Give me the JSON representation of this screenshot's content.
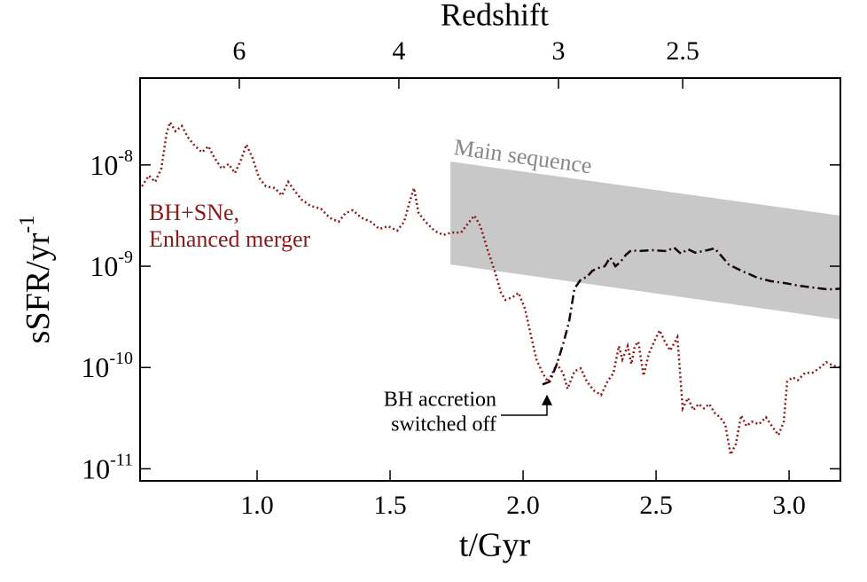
{
  "chart_data": {
    "type": "line",
    "xlabel": "t/Gyr",
    "ylabel": {
      "text": "sSFR/yr",
      "exponent": "-1"
    },
    "x2label": "Redshift",
    "xlim": [
      0.56,
      3.193
    ],
    "ylim": [
      7.6e-12,
      7.2e-08
    ],
    "log_y": true,
    "xticks": [
      {
        "value": 1,
        "label": "1.0"
      },
      1.5,
      {
        "value": 2,
        "label": "2.0"
      },
      2.5,
      {
        "value": 3,
        "label": "3.0"
      }
    ],
    "x2ticks": [
      {
        "value": 0.933,
        "label": "6"
      },
      {
        "value": 1.533,
        "label": "4"
      },
      {
        "value": 2.133,
        "label": "3"
      },
      {
        "value": 2.6,
        "label": "2.5"
      }
    ],
    "yticks": [
      {
        "value": 1e-08,
        "base": "10",
        "exponent": "-8"
      },
      {
        "value": 1e-09,
        "base": "10",
        "exponent": "-9"
      },
      {
        "value": 1e-10,
        "base": "10",
        "exponent": "-10"
      },
      {
        "value": 1e-11,
        "base": "10",
        "exponent": "-11"
      }
    ],
    "band": {
      "x": [
        1.727,
        3.193
      ],
      "lower": [
        1.04e-09,
        2.98e-10
      ],
      "upper": [
        1.08e-08,
        3.16e-09
      ],
      "color": "#c8c8c8"
    },
    "series": [
      {
        "color": "#8b1a1a",
        "style": "dotted",
        "x": [
          0.567,
          0.593,
          0.617,
          0.64,
          0.66,
          0.673,
          0.693,
          0.717,
          0.74,
          0.767,
          0.793,
          0.817,
          0.84,
          0.867,
          0.893,
          0.917,
          0.94,
          0.96,
          0.983,
          1.007,
          1.033,
          1.067,
          1.093,
          1.117,
          1.14,
          1.167,
          1.2,
          1.24,
          1.273,
          1.307,
          1.333,
          1.36,
          1.393,
          1.427,
          1.46,
          1.493,
          1.527,
          1.553,
          1.573,
          1.59,
          1.607,
          1.633,
          1.667,
          1.7,
          1.733,
          1.767,
          1.793,
          1.817,
          1.84,
          1.867,
          1.893,
          1.917,
          1.933,
          1.96,
          1.983,
          2.007,
          2.027,
          2.05,
          2.073,
          2.093,
          2.107,
          2.127,
          2.15,
          2.167,
          2.193,
          2.217,
          2.24,
          2.267,
          2.293,
          2.317,
          2.34,
          2.36,
          2.373,
          2.393,
          2.407,
          2.42,
          2.433,
          2.453,
          2.473,
          2.493,
          2.513,
          2.533,
          2.553,
          2.58,
          2.6,
          2.62,
          2.64,
          2.66,
          2.68,
          2.7,
          2.72,
          2.74,
          2.76,
          2.78,
          2.8,
          2.82,
          2.84,
          2.86,
          2.887,
          2.913,
          2.94,
          2.96,
          2.98,
          2.993,
          3.013,
          3.033,
          3.06,
          3.087,
          3.113,
          3.14,
          3.167,
          3.193
        ],
        "values": [
          6.15e-09,
          7.85e-09,
          6.8e-09,
          9.2e-09,
          2.07e-08,
          2.64e-08,
          2.15e-08,
          2.43e-08,
          1.87e-08,
          1.53e-08,
          1.33e-08,
          1.53e-08,
          1.17e-08,
          9.2e-09,
          1.02e-08,
          8.3e-09,
          1.13e-08,
          1.59e-08,
          1.17e-08,
          7.5e-09,
          6.15e-09,
          5.9e-09,
          5e-09,
          6.8e-09,
          5.6e-09,
          4.55e-09,
          3.95e-09,
          3.7e-09,
          3e-09,
          2.75e-09,
          3.36e-09,
          3.57e-09,
          3e-09,
          2.75e-09,
          2.33e-09,
          2.48e-09,
          2.24e-09,
          2.75e-09,
          4.28e-09,
          5.9e-09,
          3.36e-09,
          2.75e-09,
          2.24e-09,
          2.03e-09,
          2.15e-09,
          2.15e-09,
          2.64e-09,
          3.16e-09,
          2.48e-09,
          1.44e-09,
          9e-10,
          5.46e-10,
          4.65e-10,
          4.93e-10,
          5.46e-10,
          3.8e-10,
          2.2e-10,
          1.2e-10,
          8.85e-11,
          7.24e-11,
          8.5e-11,
          1.08e-10,
          8.85e-11,
          6.15e-11,
          9.2e-11,
          9.8e-11,
          7.24e-11,
          5.9e-11,
          5.35e-11,
          7.24e-11,
          8.85e-11,
          1.63e-10,
          1.2e-10,
          1.63e-10,
          1.08e-10,
          1.63e-10,
          1.8e-10,
          8.3e-11,
          1.38e-10,
          1.8e-10,
          2.33e-10,
          1.8e-10,
          1.47e-10,
          1.99e-10,
          3.95e-11,
          5e-11,
          3.8e-11,
          4.37e-11,
          3.95e-11,
          4.37e-11,
          3.57e-11,
          3.23e-11,
          2.75e-11,
          1.38e-11,
          1.76e-11,
          3.36e-11,
          2.64e-11,
          2.92e-11,
          2.75e-11,
          3.23e-11,
          2.54e-11,
          2.15e-11,
          2.92e-11,
          7.24e-11,
          8e-11,
          7.5e-11,
          8.85e-11,
          8.85e-11,
          9.8e-11,
          1.13e-10,
          1.04e-10,
          1e-10
        ]
      },
      {
        "color": "#1a0505",
        "style": "dashdot",
        "x": [
          2.073,
          2.1,
          2.127,
          2.153,
          2.173,
          2.193,
          2.217,
          2.24,
          2.26,
          2.283,
          2.307,
          2.327,
          2.347,
          2.367,
          2.387,
          2.407,
          2.433,
          2.487,
          2.54,
          2.567,
          2.593,
          2.62,
          2.647,
          2.693,
          2.72,
          2.747,
          2.773,
          2.8,
          2.827,
          2.853,
          2.88,
          2.933,
          2.987,
          3.04,
          3.093,
          3.147,
          3.193
        ],
        "values": [
          6.8e-11,
          7.24e-11,
          1.08e-10,
          1.8e-10,
          2.86e-10,
          6e-10,
          7.4e-10,
          7.85e-10,
          9e-10,
          9.6e-10,
          1e-09,
          1.22e-09,
          1e-09,
          1.11e-09,
          1.3e-09,
          1.44e-09,
          1.41e-09,
          1.44e-09,
          1.41e-09,
          1.53e-09,
          1.33e-09,
          1.47e-09,
          1.36e-09,
          1.44e-09,
          1.5e-09,
          1.25e-09,
          1.04e-09,
          9.6e-10,
          8.85e-10,
          8.3e-10,
          7.7e-10,
          7.1e-10,
          6.8e-10,
          6.4e-10,
          6.15e-10,
          5.9e-10,
          6e-10
        ]
      }
    ],
    "annotations": [
      {
        "lines": [
          "BH+SNe,",
          "Enhanced merger"
        ],
        "color": "#8b1a1a"
      },
      {
        "lines": [
          "BH accretion",
          "switched off"
        ],
        "color": "#000000"
      },
      {
        "lines": [
          "Main sequence"
        ],
        "color": "#888888"
      }
    ]
  }
}
